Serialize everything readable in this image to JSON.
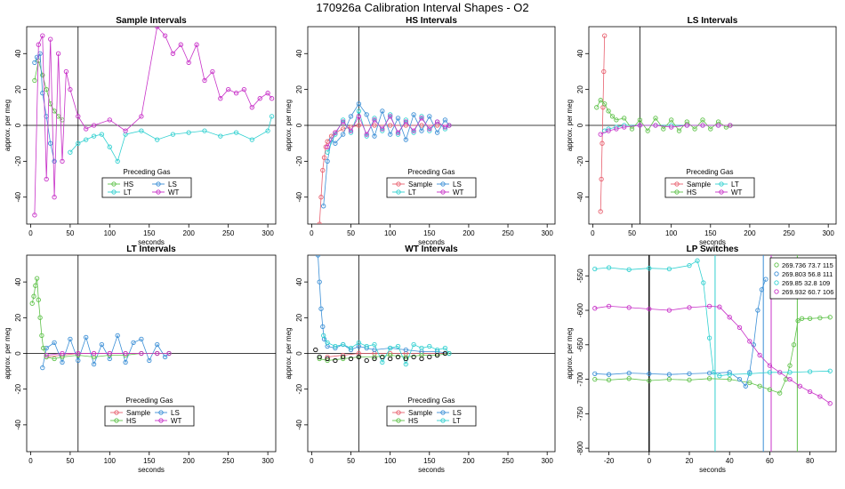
{
  "page_title": "170926a   Calibration Interval Shapes - O2",
  "colors": {
    "Sample": "#e8606f",
    "HS": "#5fc24a",
    "LS": "#3b8fd6",
    "LT": "#33d1d1",
    "WT": "#c832c8",
    "black": "#000000"
  },
  "chart_data": [
    {
      "id": "sample",
      "type": "scatter",
      "title": "Sample Intervals",
      "xlabel": "seconds",
      "ylabel": "approx. per meg",
      "xlim": [
        -5,
        310
      ],
      "ylim": [
        -55,
        55
      ],
      "xticks": [
        0,
        50,
        100,
        150,
        200,
        250,
        300
      ],
      "yticks": [
        -40,
        -20,
        0,
        20,
        40
      ],
      "vline": 60,
      "legend": {
        "title": "Preceding Gas",
        "entries": [
          "HS",
          "LS",
          "LT",
          "WT"
        ]
      },
      "series": [
        {
          "name": "HS",
          "x": [
            5,
            10,
            15,
            20,
            25,
            30,
            35,
            40
          ],
          "y": [
            25,
            36,
            28,
            20,
            12,
            8,
            5,
            3
          ]
        },
        {
          "name": "LS",
          "x": [
            5,
            8,
            12,
            15,
            20,
            25,
            30
          ],
          "y": [
            35,
            38,
            40,
            18,
            5,
            -10,
            -20
          ]
        },
        {
          "name": "LT",
          "x": [
            50,
            60,
            70,
            80,
            90,
            100,
            110,
            120,
            140,
            160,
            180,
            200,
            220,
            240,
            260,
            280,
            300,
            305
          ],
          "y": [
            -15,
            -10,
            -8,
            -6,
            -5,
            -12,
            -20,
            -5,
            -3,
            -8,
            -5,
            -4,
            -3,
            -6,
            -4,
            -8,
            -3,
            5
          ]
        },
        {
          "name": "WT",
          "x": [
            5,
            10,
            15,
            20,
            25,
            30,
            35,
            40,
            45,
            50,
            60,
            70,
            80,
            100,
            120,
            140,
            160,
            170,
            180,
            190,
            200,
            210,
            220,
            230,
            240,
            250,
            260,
            270,
            280,
            290,
            300,
            305
          ],
          "y": [
            -50,
            45,
            50,
            -30,
            48,
            -40,
            40,
            -20,
            30,
            20,
            5,
            -2,
            0,
            3,
            -3,
            5,
            55,
            50,
            40,
            45,
            35,
            45,
            25,
            30,
            15,
            20,
            18,
            20,
            10,
            15,
            18,
            15
          ]
        }
      ]
    },
    {
      "id": "hs",
      "type": "scatter",
      "title": "HS Intervals",
      "xlabel": "seconds",
      "ylabel": "approx. per meg",
      "xlim": [
        -5,
        310
      ],
      "ylim": [
        -55,
        55
      ],
      "xticks": [
        0,
        50,
        100,
        150,
        200,
        250,
        300
      ],
      "yticks": [
        -40,
        -20,
        0,
        20,
        40
      ],
      "vline": 60,
      "legend": {
        "title": "Preceding Gas",
        "entries": [
          "Sample",
          "LS",
          "LT",
          "WT"
        ]
      },
      "series": [
        {
          "name": "Sample",
          "x": [
            10,
            12,
            14,
            16,
            18,
            20,
            25,
            30,
            40,
            50,
            60,
            80,
            100,
            120,
            140,
            160,
            175
          ],
          "y": [
            -55,
            -40,
            -25,
            -18,
            -12,
            -9,
            -6,
            -4,
            -2,
            -1,
            0,
            0,
            0,
            0,
            0,
            0,
            0
          ]
        },
        {
          "name": "LS",
          "x": [
            15,
            20,
            25,
            30,
            40,
            50,
            60,
            70,
            80,
            90,
            100,
            110,
            120,
            130,
            140,
            150,
            160,
            170,
            175
          ],
          "y": [
            -45,
            -20,
            -8,
            -10,
            -5,
            5,
            12,
            6,
            -6,
            8,
            -5,
            4,
            -8,
            6,
            -3,
            5,
            -4,
            3,
            0
          ]
        },
        {
          "name": "LT",
          "x": [
            20,
            30,
            40,
            50,
            60,
            70,
            80,
            90,
            100,
            110,
            120,
            130,
            140,
            150,
            160,
            170,
            175
          ],
          "y": [
            -15,
            -5,
            3,
            -4,
            8,
            -6,
            4,
            -3,
            6,
            -5,
            3,
            -4,
            5,
            -3,
            2,
            -2,
            0
          ]
        },
        {
          "name": "WT",
          "x": [
            20,
            30,
            40,
            50,
            60,
            70,
            80,
            90,
            100,
            110,
            120,
            130,
            140,
            150,
            160,
            170,
            175
          ],
          "y": [
            -12,
            -4,
            2,
            -3,
            5,
            -5,
            3,
            -2,
            5,
            -4,
            2,
            -3,
            4,
            -2,
            2,
            -1,
            0
          ]
        }
      ]
    },
    {
      "id": "ls",
      "type": "scatter",
      "title": "LS Intervals",
      "xlabel": "seconds",
      "ylabel": "approx. per meg",
      "xlim": [
        -5,
        310
      ],
      "ylim": [
        -55,
        55
      ],
      "xticks": [
        0,
        50,
        100,
        150,
        200,
        250,
        300
      ],
      "yticks": [
        -40,
        -20,
        0,
        20,
        40
      ],
      "vline": 60,
      "legend": {
        "title": "Preceding Gas",
        "entries": [
          "Sample",
          "LT",
          "HS",
          "WT"
        ]
      },
      "series": [
        {
          "name": "Sample",
          "x": [
            10,
            11,
            12,
            13,
            14,
            15
          ],
          "y": [
            -48,
            -30,
            -10,
            10,
            30,
            50
          ]
        },
        {
          "name": "LT",
          "x": [
            15,
            20,
            30,
            40,
            60,
            80,
            100,
            120,
            140,
            160,
            175
          ],
          "y": [
            -3,
            -2,
            -1,
            0,
            0,
            0,
            0,
            0,
            0,
            0,
            0
          ]
        },
        {
          "name": "HS",
          "x": [
            5,
            10,
            15,
            20,
            25,
            30,
            40,
            50,
            60,
            70,
            80,
            90,
            100,
            110,
            120,
            130,
            140,
            150,
            160,
            170,
            175
          ],
          "y": [
            10,
            14,
            12,
            8,
            5,
            3,
            4,
            -2,
            3,
            -3,
            4,
            -2,
            3,
            -3,
            2,
            -2,
            3,
            -2,
            2,
            -1,
            0
          ]
        },
        {
          "name": "WT",
          "x": [
            10,
            20,
            30,
            40,
            60,
            80,
            100,
            120,
            140,
            160,
            175
          ],
          "y": [
            -5,
            -3,
            -2,
            -1,
            0,
            0,
            -1,
            0,
            0,
            0,
            0
          ]
        }
      ]
    },
    {
      "id": "lt",
      "type": "scatter",
      "title": "LT Intervals",
      "xlabel": "seconds",
      "ylabel": "approx. per meg",
      "xlim": [
        -5,
        310
      ],
      "ylim": [
        -55,
        55
      ],
      "xticks": [
        0,
        50,
        100,
        150,
        200,
        250,
        300
      ],
      "yticks": [
        -40,
        -20,
        0,
        20,
        40
      ],
      "vline": 60,
      "legend": {
        "title": "Preceding Gas",
        "entries": [
          "Sample",
          "LS",
          "HS",
          "WT"
        ]
      },
      "series": [
        {
          "name": "Sample",
          "x": [
            20,
            40,
            60,
            80,
            100,
            120,
            140,
            160,
            175
          ],
          "y": [
            -2,
            -1,
            0,
            0,
            0,
            0,
            0,
            0,
            0
          ]
        },
        {
          "name": "LS",
          "x": [
            15,
            20,
            30,
            40,
            50,
            60,
            70,
            80,
            90,
            100,
            110,
            120,
            130,
            140,
            150,
            160,
            170,
            175
          ],
          "y": [
            -8,
            3,
            6,
            -5,
            8,
            -4,
            9,
            -6,
            5,
            -3,
            10,
            -5,
            6,
            8,
            -4,
            5,
            -2,
            0
          ]
        },
        {
          "name": "HS",
          "x": [
            2,
            4,
            6,
            8,
            10,
            12,
            14,
            16,
            20,
            30,
            40,
            60,
            80,
            100,
            120,
            140,
            160,
            175
          ],
          "y": [
            28,
            32,
            38,
            42,
            30,
            20,
            10,
            3,
            -2,
            -3,
            -2,
            -1,
            -2,
            -1,
            -1,
            0,
            0,
            0
          ]
        },
        {
          "name": "WT",
          "x": [
            20,
            40,
            60,
            80,
            100,
            120,
            140,
            160,
            175
          ],
          "y": [
            -1,
            0,
            0,
            0,
            0,
            0,
            0,
            0,
            0
          ]
        }
      ]
    },
    {
      "id": "wt",
      "type": "scatter",
      "title": "WT Intervals",
      "xlabel": "seconds",
      "ylabel": "approx. per meg",
      "xlim": [
        -5,
        310
      ],
      "ylim": [
        -55,
        55
      ],
      "xticks": [
        0,
        50,
        100,
        150,
        200,
        250,
        300
      ],
      "yticks": [
        -40,
        -20,
        0,
        20,
        40
      ],
      "vline": 60,
      "legend": {
        "title": "Preceding Gas",
        "entries": [
          "Sample",
          "LS",
          "HS",
          "LT"
        ]
      },
      "series": [
        {
          "name": "Sample",
          "x": [
            20,
            40,
            60,
            80,
            100,
            120,
            140,
            160,
            175
          ],
          "y": [
            -2,
            -1,
            0,
            0,
            0,
            0,
            0,
            0,
            0
          ]
        },
        {
          "name": "LS",
          "x": [
            8,
            10,
            12,
            14,
            16,
            20,
            30,
            40,
            50,
            60,
            70,
            80,
            100,
            120,
            140,
            160,
            175
          ],
          "y": [
            55,
            40,
            25,
            15,
            8,
            4,
            3,
            5,
            2,
            4,
            3,
            2,
            3,
            2,
            1,
            1,
            0
          ]
        },
        {
          "name": "HS",
          "x": [
            10,
            20,
            40,
            60,
            80,
            100,
            120,
            140,
            160,
            175
          ],
          "y": [
            -3,
            -4,
            -3,
            -2,
            -2,
            -1,
            -2,
            -1,
            -1,
            0
          ]
        },
        {
          "name": "LT",
          "x": [
            15,
            20,
            30,
            40,
            50,
            60,
            70,
            80,
            90,
            100,
            110,
            120,
            130,
            140,
            150,
            160,
            170,
            175
          ],
          "y": [
            10,
            6,
            4,
            5,
            3,
            6,
            4,
            5,
            -5,
            3,
            4,
            -6,
            5,
            3,
            4,
            2,
            3,
            0
          ]
        },
        {
          "name": "black",
          "x": [
            5,
            10,
            20,
            30,
            40,
            50,
            60,
            70,
            80,
            90,
            100,
            110,
            120,
            130,
            140,
            150,
            160,
            170
          ],
          "y": [
            2,
            -2,
            -3,
            -4,
            -2,
            -3,
            -2,
            -4,
            -3,
            -2,
            -3,
            -2,
            -3,
            -2,
            -3,
            -2,
            -1,
            0
          ]
        }
      ]
    },
    {
      "id": "lp",
      "type": "scatter",
      "title": "LP Switches",
      "xlabel": "seconds",
      "ylabel": "approx. per meg",
      "xlim": [
        -30,
        93
      ],
      "ylim": [
        -805,
        -520
      ],
      "xticks": [
        -20,
        0,
        20,
        40,
        60,
        80
      ],
      "yticks": [
        -800,
        -750,
        -700,
        -650,
        -600,
        -550
      ],
      "vline": 0,
      "legend": {
        "entries": [
          "269.736 73.7 115",
          "269.803 56.8 111",
          "269.85 32.8 109",
          "269.932 60.7 106"
        ]
      },
      "switch_lines": [
        {
          "series": "HS",
          "x": 73.7
        },
        {
          "series": "LS",
          "x": 56.8
        },
        {
          "series": "LT",
          "x": 32.8
        },
        {
          "series": "WT",
          "x": 60.7
        }
      ],
      "series": [
        {
          "name": "HS",
          "x": [
            -27,
            -20,
            -10,
            0,
            10,
            20,
            30,
            40,
            50,
            55,
            60,
            65,
            68,
            70,
            72,
            74,
            76,
            80,
            85,
            90
          ],
          "y": [
            -700,
            -701,
            -699,
            -702,
            -700,
            -701,
            -699,
            -700,
            -705,
            -710,
            -715,
            -720,
            -700,
            -680,
            -650,
            -615,
            -612,
            -612,
            -611,
            -610
          ]
        },
        {
          "name": "LS",
          "x": [
            -27,
            -20,
            -10,
            0,
            10,
            20,
            30,
            40,
            45,
            48,
            50,
            52,
            54,
            56,
            58
          ],
          "y": [
            -692,
            -693,
            -691,
            -692,
            -693,
            -692,
            -691,
            -690,
            -700,
            -710,
            -690,
            -650,
            -600,
            -570,
            -555
          ]
        },
        {
          "name": "LT",
          "x": [
            -27,
            -20,
            -10,
            0,
            10,
            20,
            24,
            27,
            30,
            32,
            35,
            40,
            50,
            60,
            70,
            80,
            90
          ],
          "y": [
            -540,
            -538,
            -541,
            -539,
            -540,
            -535,
            -528,
            -560,
            -640,
            -690,
            -695,
            -693,
            -692,
            -690,
            -690,
            -689,
            -688
          ]
        },
        {
          "name": "WT",
          "x": [
            -27,
            -20,
            -10,
            0,
            10,
            20,
            30,
            35,
            40,
            45,
            50,
            55,
            60,
            65,
            70,
            75,
            80,
            85,
            90
          ],
          "y": [
            -597,
            -594,
            -596,
            -598,
            -600,
            -596,
            -594,
            -595,
            -610,
            -625,
            -645,
            -665,
            -680,
            -690,
            -700,
            -710,
            -718,
            -725,
            -735
          ]
        }
      ]
    }
  ]
}
